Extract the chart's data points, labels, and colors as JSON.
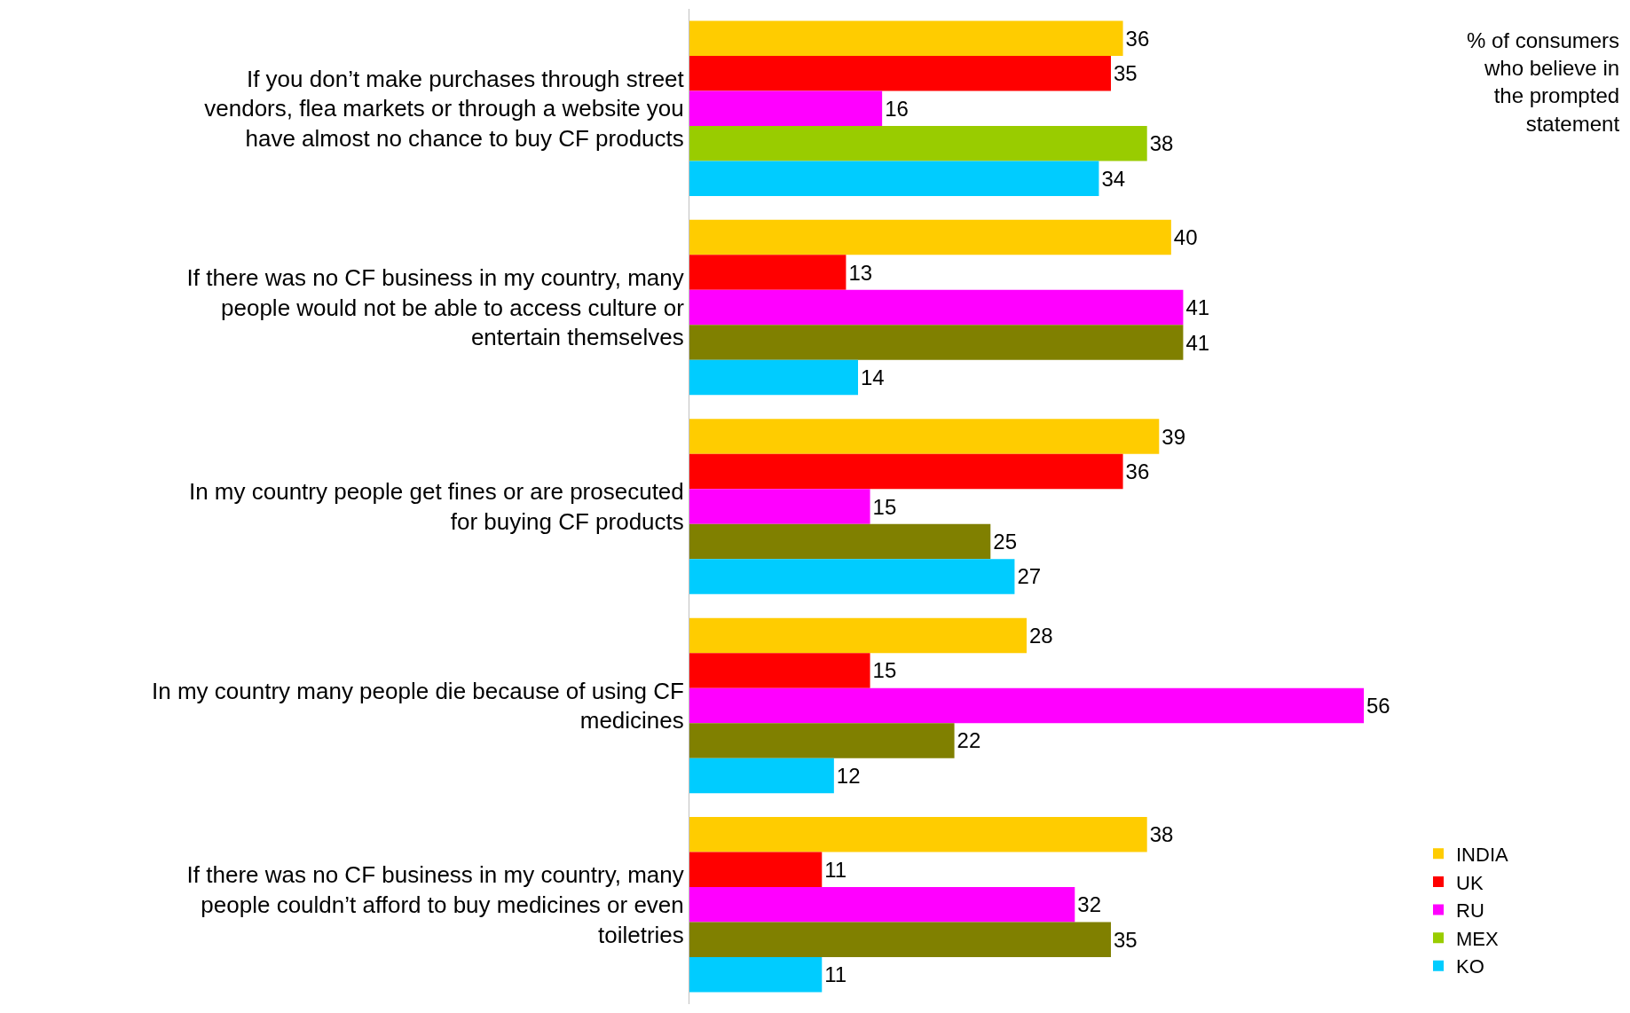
{
  "chart_data": {
    "type": "bar",
    "orientation": "horizontal",
    "categories": [
      "If you don’t make purchases through street vendors, flea markets or through a website you have almost no chance to buy CF products",
      "If there was no CF business in my country, many people would not be able to access culture or entertain themselves",
      "In my country people get fines or are prosecuted for buying CF products",
      "In my country many people die because of using CF medicines",
      "If there was no CF business in my country, many people couldn’t afford to buy medicines or even toiletries"
    ],
    "series": [
      {
        "name": "INDIA",
        "color": "#ffcc00",
        "values": [
          36,
          40,
          39,
          28,
          38
        ]
      },
      {
        "name": "UK",
        "color": "#ff0000",
        "values": [
          35,
          13,
          36,
          15,
          11
        ]
      },
      {
        "name": "RU",
        "color": "#ff00ff",
        "values": [
          16,
          41,
          15,
          56,
          32
        ]
      },
      {
        "name": "MEX",
        "color": "#808000",
        "colors": [
          "#99cc00",
          "#808000",
          "#808000",
          "#808000",
          "#808000"
        ],
        "values": [
          38,
          41,
          25,
          22,
          35
        ]
      },
      {
        "name": "KO",
        "color": "#00ccff",
        "values": [
          34,
          14,
          27,
          12,
          11
        ]
      }
    ],
    "data_labels": true,
    "legend": "bottom right",
    "annotations": [
      "% of consumers who believe in the prompted statement"
    ]
  }
}
